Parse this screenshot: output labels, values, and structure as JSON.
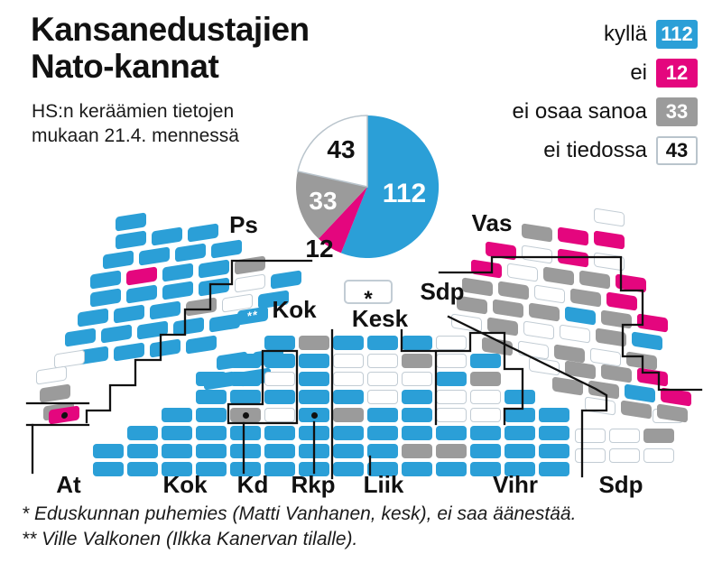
{
  "header": {
    "title_line1": "Kansanedustajien",
    "title_line2": "Nato-kannat",
    "subtitle_line1": "HS:n keräämien tietojen",
    "subtitle_line2": "mukaan 21.4. mennessä"
  },
  "legend": {
    "items": [
      {
        "label": "kyllä",
        "value": "112",
        "color": "#2b9fd7",
        "text_color": "#ffffff"
      },
      {
        "label": "ei",
        "value": "12",
        "color": "#e4067e",
        "text_color": "#ffffff"
      },
      {
        "label": "ei osaa sanoa",
        "value": "33",
        "color": "#9b9b9b",
        "text_color": "#ffffff"
      },
      {
        "label": "ei tiedossa",
        "value": "43",
        "color": "#ffffff",
        "text_color": "#111111"
      }
    ]
  },
  "chart_data": {
    "type": "pie",
    "title": "Kansanedustajien Nato-kannat",
    "subtitle": "HS:n keräämien tietojen mukaan 21.4. mennessä",
    "categories": [
      "kyllä",
      "ei",
      "ei osaa sanoa",
      "ei tiedossa"
    ],
    "values": [
      112,
      12,
      33,
      43
    ],
    "colors": [
      "#2b9fd7",
      "#e4067e",
      "#9b9b9b",
      "#ffffff"
    ],
    "total": 200,
    "start_angle_deg": 0,
    "direction": "clockwise",
    "legend_position": "top-right"
  },
  "pie_labels": {
    "v112": "112",
    "v12": "12",
    "v33": "33",
    "v43": "43"
  },
  "parties": {
    "ps": "Ps",
    "kok_top": "Kok",
    "kesk": "Kesk",
    "sdp_top": "Sdp",
    "vas": "Vas",
    "at": "At",
    "kok_bottom": "Kok",
    "kd": "Kd",
    "rkp": "Rkp",
    "liik": "Liik",
    "vihr": "Vihr",
    "sdp_bottom": "Sdp"
  },
  "seatmap": {
    "color_key": {
      "B": "#2b9fd7",
      "M": "#e4067e",
      "G": "#9b9b9b",
      "W": "#ffffff"
    },
    "substitute_mark": "**",
    "speaker_mark": "*",
    "sections": {
      "ps": [
        "B",
        "BBB",
        "BBBB",
        "BMBBG",
        "BBBBWB",
        "BBBGWB",
        "BBBBB",
        "BBBB"
      ],
      "ps_edge": [
        "W",
        "W",
        "G",
        "G"
      ],
      "at": [
        "M"
      ],
      "kok_wing": [
        "BB",
        "BB"
      ],
      "kok_sub": [
        "B"
      ],
      "grid": [
        ".....BGBBBW...",
        "....BBBWWGWB..",
        "...BBWBWWWBG..",
        "...BBBBBWBWWB.",
        "..BBGWBGBBWWBB",
        ".BBBBBBBBBBBBB",
        "BBBBBBBBBGGBBB",
        "BBBBBBBBBBBBBB"
      ],
      "sdp_block": [
        "WWG",
        "WWW",
        "W"
      ],
      "rwing": [
        "W",
        "GMM",
        "MWMW",
        "MWGGM",
        "GGWGM",
        "GGGBGM",
        "WGWWGB",
        "GWGWG",
        "WGGM",
        "GGBM",
        "WGG"
      ]
    }
  },
  "footnotes": {
    "line1": "* Eduskunnan puhemies (Matti Vanhanen, kesk), ei saa äänestää.",
    "line2": "** Ville Valkonen (Ilkka Kanervan tilalle)."
  }
}
